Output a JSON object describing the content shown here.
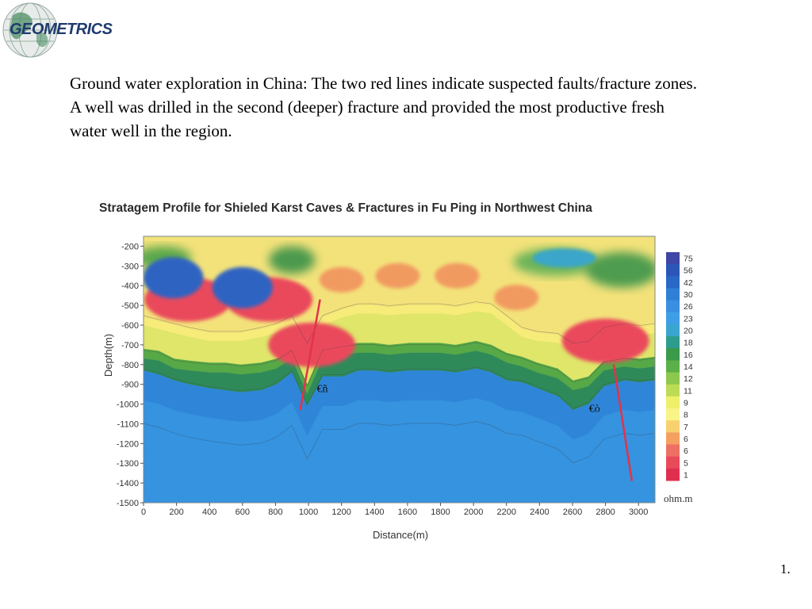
{
  "logo": {
    "text": "GEOMETRICS"
  },
  "description": "Ground water exploration in China:  The two red lines indicate suspected faults/fracture zones.  A well was drilled in the second (deeper) fracture and provided the most productive fresh water well in the region.",
  "page_number": "1.",
  "chart_data": {
    "type": "heatmap",
    "title": "Stratagem Profile for Shieled Karst Caves & Fractures in  Fu Ping in Northwest China",
    "xlabel": "Distance(m)",
    "ylabel": "Depth(m)",
    "xlim": [
      0,
      3100
    ],
    "ylim": [
      -1500,
      -150
    ],
    "x_ticks": [
      "0",
      "200",
      "400",
      "600",
      "800",
      "1000",
      "1200",
      "1400",
      "1600",
      "1800",
      "2000",
      "2200",
      "2400",
      "2600",
      "2800",
      "3000"
    ],
    "y_ticks": [
      "-200",
      "-300",
      "-400",
      "-500",
      "-600",
      "-700",
      "-800",
      "-900",
      "-1000",
      "-1100",
      "-1200",
      "-1300",
      "-1400",
      "-1500"
    ],
    "colorbar": {
      "unit": "ohm.m",
      "labels": [
        "75",
        "56",
        "42",
        "30",
        "26",
        "23",
        "20",
        "18",
        "16",
        "14",
        "12",
        "11",
        "9",
        "8",
        "7",
        "6",
        "6",
        "5",
        "1"
      ],
      "colors": [
        "#4046a8",
        "#2b56b8",
        "#2a68c8",
        "#2f7fd6",
        "#3a8fe0",
        "#3f9fe6",
        "#3aa6d0",
        "#2e9c8c",
        "#3a9a4a",
        "#5bb04a",
        "#8cc84e",
        "#bddc55",
        "#eef06a",
        "#f9f487",
        "#f7d070",
        "#f3a062",
        "#ee7064",
        "#e94a5a",
        "#e02e50"
      ]
    },
    "field_fractions": {
      "x_pct": [
        0,
        3,
        6,
        9,
        13,
        16,
        19,
        23,
        26,
        29,
        32,
        35,
        39,
        42,
        45,
        48,
        52,
        55,
        58,
        61,
        65,
        68,
        71,
        74,
        77,
        81,
        84,
        87,
        90,
        94,
        97,
        100
      ],
      "top": [
        -200,
        -200,
        -200,
        -200,
        -200,
        -200,
        -200,
        -200,
        -200,
        -200,
        -200,
        -200,
        -200,
        -200,
        -200,
        -200,
        -200,
        -200,
        -200,
        -200,
        -200,
        -200,
        -200,
        -200,
        -200,
        -200,
        -200,
        -200,
        -200,
        -200,
        -200,
        -200
      ],
      "blue_top": [
        -830,
        -850,
        -880,
        -900,
        -920,
        -930,
        -940,
        -930,
        -900,
        -840,
        -1010,
        -860,
        -860,
        -830,
        -830,
        -840,
        -830,
        -830,
        -830,
        -840,
        -820,
        -840,
        -880,
        -890,
        -920,
        -960,
        -1030,
        -1000,
        -910,
        -880,
        -890,
        -880
      ],
      "green_top": [
        -720,
        -730,
        -770,
        -780,
        -790,
        -790,
        -800,
        -790,
        -770,
        -720,
        -900,
        -720,
        -700,
        -690,
        -690,
        -700,
        -690,
        -690,
        -690,
        -700,
        -680,
        -700,
        -740,
        -760,
        -790,
        -820,
        -880,
        -860,
        -780,
        -760,
        -770,
        -760
      ],
      "yellow_top": [
        -560,
        -580,
        -600,
        -620,
        -640,
        -640,
        -640,
        -620,
        -600,
        -560,
        -700,
        -560,
        -520,
        -500,
        -500,
        -510,
        -500,
        -500,
        -500,
        -510,
        -490,
        -500,
        -560,
        -620,
        -640,
        -650,
        -700,
        -690,
        -620,
        -600,
        -610,
        -600
      ]
    },
    "anomalies": [
      {
        "type": "red",
        "x": 270,
        "y": -470
      },
      {
        "type": "red",
        "x": 760,
        "y": -470
      },
      {
        "type": "red",
        "x": 1020,
        "y": -700
      },
      {
        "type": "red",
        "x": 2800,
        "y": -680
      },
      {
        "type": "orange",
        "x": 1200,
        "y": -370
      },
      {
        "type": "orange",
        "x": 1540,
        "y": -350
      },
      {
        "type": "orange",
        "x": 1900,
        "y": -350
      },
      {
        "type": "orange",
        "x": 2260,
        "y": -460
      },
      {
        "type": "blue",
        "x": 600,
        "y": -410
      },
      {
        "type": "blue",
        "x": 180,
        "y": -360
      },
      {
        "type": "lightblue",
        "x": 2550,
        "y": -260
      }
    ],
    "fault_lines": [
      {
        "x1": 1070,
        "y1": -470,
        "x2": 950,
        "y2": -1030
      },
      {
        "x1": 2850,
        "y1": -800,
        "x2": 2960,
        "y2": -1390
      }
    ],
    "annotations": [
      {
        "text": "€ñ",
        "x": 1050,
        "y": -940
      },
      {
        "text": "€ò",
        "x": 2700,
        "y": -1040
      }
    ]
  }
}
